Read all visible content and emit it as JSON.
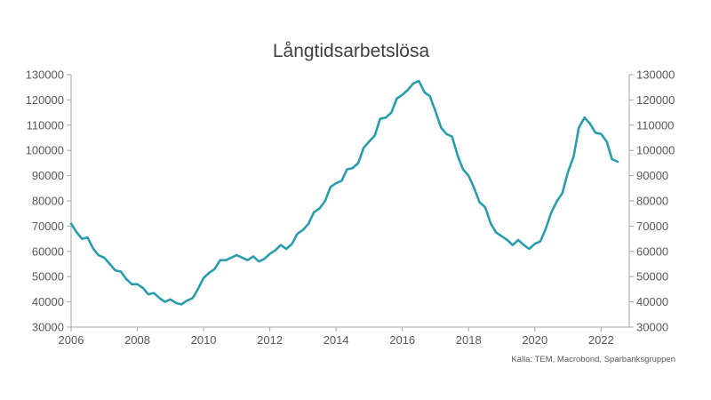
{
  "chart_data": {
    "type": "line",
    "title": "Långtidsarbetslösa",
    "source": "Källa: TEM, Macrobond, Sparbanksgruppen",
    "xlabel": "",
    "ylabel": "",
    "xlim": [
      2006.0,
      2022.85
    ],
    "ylim": [
      30000,
      130000
    ],
    "x_ticks": [
      2006,
      2008,
      2010,
      2012,
      2014,
      2016,
      2018,
      2020,
      2022
    ],
    "y_ticks": [
      30000,
      40000,
      50000,
      60000,
      70000,
      80000,
      90000,
      100000,
      110000,
      120000,
      130000
    ],
    "y_tick_labels": [
      "30000",
      "40000",
      "50000",
      "60000",
      "70000",
      "80000",
      "90000",
      "100000",
      "110000",
      "120000",
      "130000"
    ],
    "x_tick_labels": [
      "2006",
      "2008",
      "2010",
      "2012",
      "2014",
      "2016",
      "2018",
      "2020",
      "2022"
    ],
    "grid": false,
    "legend": "none",
    "colors": {
      "line": "#2a9dab",
      "axis": "#a6a6a6",
      "text": "#595959"
    },
    "series": [
      {
        "x": [
          2006.0,
          2006.17,
          2006.33,
          2006.5,
          2006.67,
          2006.83,
          2007.0,
          2007.17,
          2007.33,
          2007.5,
          2007.67,
          2007.83,
          2008.0,
          2008.17,
          2008.33,
          2008.5,
          2008.67,
          2008.83,
          2009.0,
          2009.17,
          2009.33,
          2009.5,
          2009.67,
          2009.83,
          2010.0,
          2010.17,
          2010.33,
          2010.5,
          2010.67,
          2010.83,
          2011.0,
          2011.17,
          2011.33,
          2011.5,
          2011.67,
          2011.83,
          2012.0,
          2012.17,
          2012.33,
          2012.5,
          2012.67,
          2012.83,
          2013.0,
          2013.17,
          2013.33,
          2013.5,
          2013.67,
          2013.83,
          2014.0,
          2014.17,
          2014.33,
          2014.5,
          2014.67,
          2014.83,
          2015.0,
          2015.17,
          2015.33,
          2015.5,
          2015.67,
          2015.83,
          2016.0,
          2016.17,
          2016.33,
          2016.5,
          2016.67,
          2016.83,
          2017.0,
          2017.17,
          2017.33,
          2017.5,
          2017.67,
          2017.83,
          2018.0,
          2018.17,
          2018.33,
          2018.5,
          2018.67,
          2018.83,
          2019.0,
          2019.17,
          2019.33,
          2019.5,
          2019.67,
          2019.83,
          2020.0,
          2020.17,
          2020.33,
          2020.5,
          2020.67,
          2020.83,
          2021.0,
          2021.17,
          2021.33,
          2021.5,
          2021.67,
          2021.83,
          2022.0,
          2022.17,
          2022.33,
          2022.5
        ],
        "values": [
          71000,
          67500,
          65000,
          65500,
          61000,
          58500,
          57500,
          55000,
          52500,
          52000,
          49000,
          47000,
          47000,
          45500,
          43000,
          43500,
          41500,
          40000,
          41000,
          39500,
          39000,
          40500,
          41500,
          45000,
          49500,
          51500,
          53000,
          56500,
          56500,
          57500,
          58500,
          57500,
          56500,
          58000,
          56000,
          57000,
          59000,
          60500,
          62500,
          61000,
          63000,
          67000,
          68500,
          71000,
          75500,
          77000,
          80000,
          85500,
          87000,
          88000,
          92500,
          93000,
          95000,
          101000,
          103500,
          106000,
          112500,
          113000,
          115000,
          120500,
          122000,
          124000,
          126500,
          127500,
          123000,
          121500,
          115500,
          109000,
          106500,
          105500,
          98000,
          92500,
          90000,
          85000,
          79500,
          77500,
          71000,
          67500,
          66000,
          64500,
          62500,
          64500,
          62500,
          61000,
          63000,
          64000,
          69000,
          75500,
          80000,
          83000,
          91500,
          97500,
          109000,
          113000,
          110500,
          107000,
          106500,
          103500,
          96500,
          95500
        ]
      }
    ]
  }
}
